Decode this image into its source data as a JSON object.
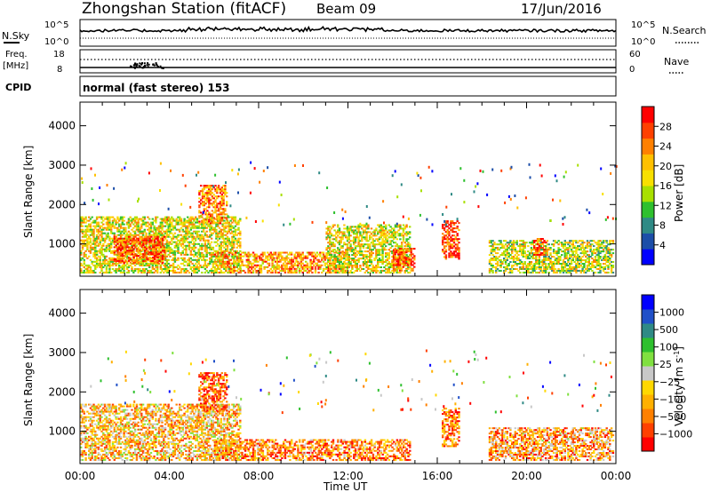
{
  "header": {
    "station": "Zhongshan Station (fitACF)",
    "beam": "Beam 09",
    "date": "17/Jun/2016"
  },
  "panels": {
    "nsky_label": "N.Sky",
    "nsky_ticks": [
      "10^5",
      "10^0"
    ],
    "nsearch_label": "N.Search",
    "nsearch_ticks": [
      "10^5",
      "10^0"
    ],
    "freq_label": "Freq.",
    "freq_unit": "[MHz]",
    "freq_ticks": [
      "18",
      "8"
    ],
    "nave_label": "Nave",
    "nave_ticks": [
      "60",
      "0"
    ],
    "cpid_label": "CPID",
    "cpid_text": "normal (fast stereo) 153"
  },
  "chart_data": [
    {
      "type": "heatmap",
      "name": "power",
      "ylabel": "Slant Range [km]",
      "y_ticks": [
        1000,
        2000,
        3000,
        4000
      ],
      "ylim": [
        180,
        4600
      ],
      "x_ticks": [
        "00:00",
        "04:00",
        "08:00",
        "12:00",
        "16:00",
        "20:00",
        "00:00"
      ],
      "xlim_hours": [
        0,
        24
      ],
      "colorbar": {
        "label": "Power [dB]",
        "tick_labels": [
          "28",
          "24",
          "20",
          "16",
          "12",
          "8",
          "4"
        ],
        "colors": [
          "#0000ff",
          "#1c4ea8",
          "#2f8a85",
          "#2ec02e",
          "#a8e000",
          "#f8e000",
          "#ffc000",
          "#ff8000",
          "#ff4000",
          "#ff0000"
        ]
      },
      "echo_regions": [
        {
          "t0": 0.0,
          "t1": 7.2,
          "r0": 250,
          "r1": 1700,
          "level": 0.55
        },
        {
          "t0": 1.5,
          "t1": 3.8,
          "r0": 500,
          "r1": 1200,
          "level": 0.85
        },
        {
          "t0": 5.3,
          "t1": 6.6,
          "r0": 1500,
          "r1": 2500,
          "level": 0.75
        },
        {
          "t0": 6.0,
          "t1": 12.0,
          "r0": 250,
          "r1": 800,
          "level": 0.7
        },
        {
          "t0": 11.0,
          "t1": 14.8,
          "r0": 250,
          "r1": 1500,
          "level": 0.55
        },
        {
          "t0": 14.0,
          "t1": 15.0,
          "r0": 300,
          "r1": 900,
          "level": 0.85
        },
        {
          "t0": 16.2,
          "t1": 17.0,
          "r0": 600,
          "r1": 1600,
          "level": 0.9
        },
        {
          "t0": 18.3,
          "t1": 23.9,
          "r0": 250,
          "r1": 1100,
          "level": 0.5
        },
        {
          "t0": 20.3,
          "t1": 20.9,
          "r0": 700,
          "r1": 1150,
          "level": 0.85
        }
      ]
    },
    {
      "type": "heatmap",
      "name": "velocity",
      "ylabel": "Slant Range [km]",
      "y_ticks": [
        1000,
        2000,
        3000,
        4000
      ],
      "ylim": [
        180,
        4600
      ],
      "x_ticks": [
        "00:00",
        "04:00",
        "08:00",
        "12:00",
        "16:00",
        "20:00",
        "00:00"
      ],
      "xlim_hours": [
        0,
        24
      ],
      "xlabel": "Time UT",
      "colorbar": {
        "label": "Velocity [m s",
        "label_superscript": "-1",
        "label_suffix": "]",
        "tick_labels": [
          "1000",
          "500",
          "100",
          "25",
          "−25",
          "−100",
          "−500",
          "−1000"
        ],
        "colors": [
          "#ff0000",
          "#ff4000",
          "#ff8000",
          "#ffb000",
          "#ffd800",
          "#c8c8c8",
          "#80e040",
          "#2ec02e",
          "#2f8a85",
          "#2050c8",
          "#0000ff"
        ]
      },
      "echo_regions": [
        {
          "t0": 0.0,
          "t1": 7.2,
          "r0": 250,
          "r1": 1700,
          "level": 0.35
        },
        {
          "t0": 5.3,
          "t1": 6.6,
          "r0": 1500,
          "r1": 2500,
          "level": 0.15
        },
        {
          "t0": 6.0,
          "t1": 14.8,
          "r0": 250,
          "r1": 800,
          "level": 0.25
        },
        {
          "t0": 16.2,
          "t1": 17.0,
          "r0": 600,
          "r1": 1600,
          "level": 0.2
        },
        {
          "t0": 18.3,
          "t1": 23.9,
          "r0": 250,
          "r1": 1100,
          "level": 0.3
        }
      ]
    }
  ],
  "colors": {
    "axis": "#000000",
    "background": "#ffffff",
    "ground_scatter": "#808080"
  }
}
